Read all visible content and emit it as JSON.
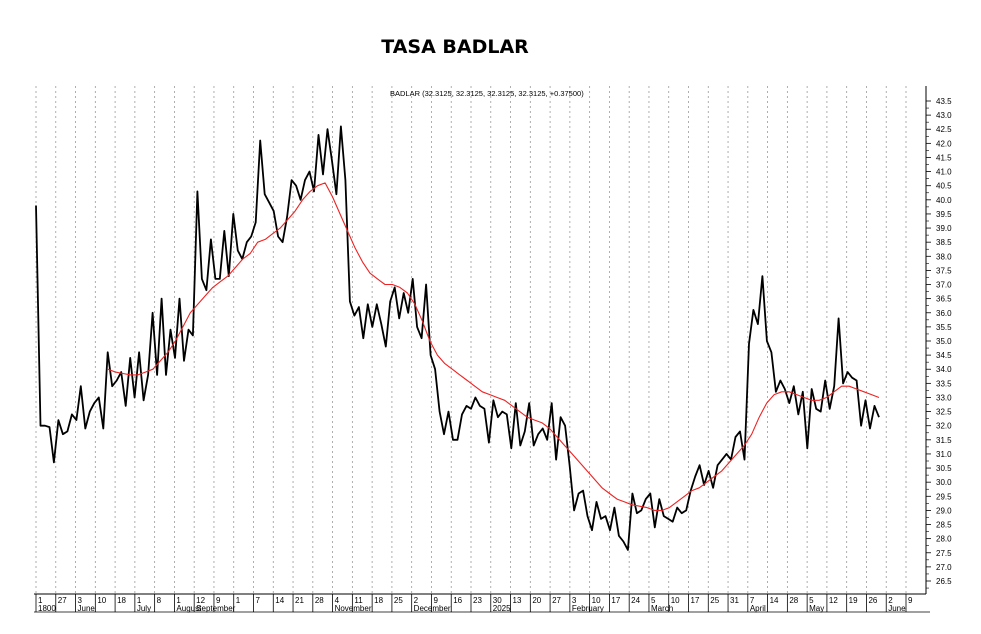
{
  "title": "TASA BADLAR",
  "chart_data": {
    "type": "line",
    "title": "TASA BADLAR",
    "legend_text": "BADLAR (32.3125, 32.3125, 32.3125, 32.3125, +0.37500)",
    "xlabel": "",
    "ylabel": "",
    "ylim": [
      26.1,
      43.8
    ],
    "y_ticks": [
      "26.5",
      "27.0",
      "27.5",
      "28.0",
      "28.5",
      "29.0",
      "29.5",
      "30.0",
      "30.5",
      "31.0",
      "31.5",
      "32.0",
      "32.5",
      "33.0",
      "33.5",
      "34.0",
      "34.5",
      "35.0",
      "35.5",
      "36.0",
      "36.5",
      "37.0",
      "37.5",
      "38.0",
      "38.5",
      "39.0",
      "39.5",
      "40.0",
      "40.5",
      "41.0",
      "41.5",
      "42.0",
      "42.5",
      "43.0",
      "43.5"
    ],
    "grid": true,
    "x_day_labels": [
      "1",
      "27",
      "3",
      "10",
      "18",
      "1",
      "8",
      "1",
      "12",
      "9",
      "1",
      "7",
      "14",
      "21",
      "28",
      "4",
      "11",
      "18",
      "25",
      "2",
      "9",
      "16",
      "23",
      "30",
      "13",
      "20",
      "27",
      "3",
      "10",
      "17",
      "24",
      "5",
      "10",
      "17",
      "25",
      "31",
      "7",
      "14",
      "28",
      "5",
      "12",
      "19",
      "26",
      "2",
      "9"
    ],
    "x_month_labels": [
      "1800",
      "June",
      "July",
      "August",
      "September",
      "November",
      "December",
      "2025",
      "February",
      "March",
      "April",
      "May",
      "June"
    ],
    "series": [
      {
        "name": "BADLAR",
        "color": "#000000",
        "values": [
          39.8,
          32.0,
          32.0,
          31.95,
          30.7,
          32.2,
          31.7,
          31.8,
          32.4,
          32.2,
          33.4,
          31.9,
          32.5,
          32.8,
          33.0,
          31.9,
          34.6,
          33.4,
          33.6,
          33.9,
          32.7,
          34.4,
          33.0,
          34.6,
          32.9,
          33.8,
          36.0,
          33.8,
          36.5,
          33.8,
          35.4,
          34.4,
          36.5,
          34.3,
          35.4,
          35.2,
          40.3,
          37.2,
          36.8,
          38.6,
          37.2,
          37.2,
          38.9,
          37.3,
          39.5,
          38.2,
          37.9,
          38.5,
          38.7,
          39.2,
          42.1,
          40.2,
          39.9,
          39.6,
          38.7,
          38.5,
          39.4,
          40.7,
          40.5,
          40.0,
          40.7,
          41.0,
          40.3,
          42.3,
          40.9,
          42.5,
          41.4,
          40.2,
          42.6,
          40.7,
          36.4,
          35.9,
          36.2,
          35.1,
          36.3,
          35.5,
          36.3,
          35.6,
          34.8,
          36.4,
          36.9,
          35.8,
          36.7,
          36.0,
          37.2,
          35.5,
          35.1,
          37.0,
          34.5,
          34.0,
          32.5,
          31.7,
          32.5,
          31.5,
          31.5,
          32.4,
          32.7,
          32.6,
          33.0,
          32.7,
          32.6,
          31.4,
          32.9,
          32.3,
          32.5,
          32.4,
          31.2,
          32.8,
          31.3,
          31.8,
          32.8,
          31.3,
          31.7,
          31.9,
          31.5,
          32.8,
          30.8,
          32.3,
          32.0,
          30.6,
          29.0,
          29.6,
          29.7,
          28.8,
          28.3,
          29.3,
          28.7,
          28.8,
          28.3,
          29.1,
          28.1,
          27.9,
          27.6,
          29.6,
          28.9,
          29.0,
          29.4,
          29.6,
          28.4,
          29.4,
          28.8,
          28.7,
          28.6,
          29.1,
          28.9,
          29.0,
          29.7,
          30.2,
          30.6,
          29.9,
          30.4,
          29.8,
          30.6,
          30.8,
          31.0,
          30.8,
          31.6,
          31.8,
          30.8,
          34.9,
          36.1,
          35.6,
          37.3,
          35.0,
          34.6,
          33.2,
          33.6,
          33.3,
          32.8,
          33.4,
          32.4,
          33.2,
          31.2,
          33.3,
          32.6,
          32.5,
          33.6,
          32.6,
          33.4,
          35.8,
          33.5,
          33.9,
          33.7,
          33.6,
          32.0,
          32.9,
          31.9,
          32.7,
          32.3
        ]
      },
      {
        "name": "",
        "color": "#ee2222",
        "values": [
          34.0,
          33.9,
          33.85,
          33.8,
          33.8,
          33.9,
          34.0,
          34.3,
          34.6,
          35.0,
          35.5,
          36.0,
          36.3,
          36.6,
          36.9,
          37.1,
          37.3,
          37.6,
          37.9,
          38.1,
          38.5,
          38.6,
          38.8,
          39.0,
          39.3,
          39.6,
          40.0,
          40.3,
          40.5,
          40.6,
          40.1,
          39.5,
          38.9,
          38.3,
          37.8,
          37.4,
          37.2,
          37.0,
          37.0,
          36.9,
          36.7,
          36.3,
          35.7,
          35.0,
          34.5,
          34.2,
          34.0,
          33.8,
          33.6,
          33.4,
          33.2,
          33.1,
          33.0,
          32.9,
          32.7,
          32.5,
          32.3,
          32.2,
          32.1,
          31.9,
          31.6,
          31.3,
          31.0,
          30.7,
          30.4,
          30.1,
          29.8,
          29.6,
          29.4,
          29.3,
          29.2,
          29.15,
          29.1,
          29.0,
          29.0,
          29.1,
          29.3,
          29.5,
          29.7,
          29.8,
          30.0,
          30.2,
          30.4,
          30.7,
          31.0,
          31.3,
          31.7,
          32.3,
          32.8,
          33.1,
          33.2,
          33.2,
          33.1,
          33.0,
          32.9,
          32.9,
          33.0,
          33.2,
          33.4,
          33.4,
          33.3,
          33.2,
          33.1,
          33.0
        ]
      }
    ]
  }
}
